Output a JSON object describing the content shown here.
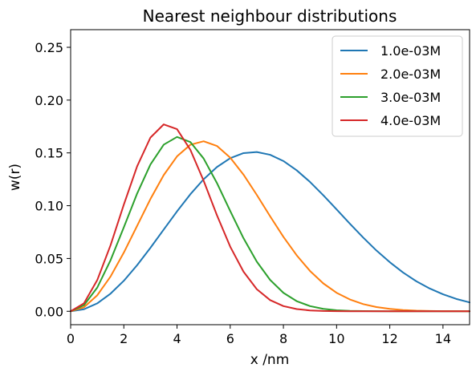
{
  "chart_data": {
    "type": "line",
    "title": "Nearest neighbour distributions",
    "xlabel": "x /nm",
    "ylabel": "w(r)",
    "xlim": [
      0,
      15
    ],
    "ylim": [
      -0.0127,
      0.2667
    ],
    "x_ticks": [
      0,
      2,
      4,
      6,
      8,
      10,
      12,
      14
    ],
    "y_ticks": [
      0.0,
      0.05,
      0.1,
      0.15,
      0.2,
      0.25
    ],
    "x_tick_labels": [
      "0",
      "2",
      "4",
      "6",
      "8",
      "10",
      "12",
      "14"
    ],
    "y_tick_labels": [
      "0.00",
      "0.05",
      "0.10",
      "0.15",
      "0.20",
      "0.25"
    ],
    "grid": false,
    "legend_position": "top-right",
    "x": [
      0,
      0.5,
      1,
      1.5,
      2,
      2.5,
      3,
      3.5,
      4,
      4.5,
      5,
      5.5,
      6,
      6.5,
      7,
      7.5,
      8,
      8.5,
      9,
      9.5,
      10,
      10.5,
      11,
      11.5,
      12,
      12.5,
      13,
      13.5,
      14,
      14.5,
      15
    ],
    "series": [
      {
        "name": "1.0e-03M",
        "color": "#1f77b4",
        "values": [
          0,
          0.0019,
          0.0075,
          0.0167,
          0.0289,
          0.0437,
          0.0601,
          0.0774,
          0.0946,
          0.1108,
          0.125,
          0.1366,
          0.145,
          0.1498,
          0.1508,
          0.1482,
          0.1423,
          0.1335,
          0.1225,
          0.1099,
          0.0965,
          0.0829,
          0.0698,
          0.0575,
          0.0465,
          0.0367,
          0.0284,
          0.0216,
          0.0161,
          0.0117,
          0.0084
        ]
      },
      {
        "name": "2.0e-03M",
        "color": "#ff7f0e",
        "values": [
          0,
          0.0038,
          0.0151,
          0.0329,
          0.0556,
          0.0809,
          0.1063,
          0.129,
          0.1467,
          0.1577,
          0.161,
          0.1566,
          0.1455,
          0.1294,
          0.1102,
          0.09,
          0.0705,
          0.053,
          0.0382,
          0.0264,
          0.0175,
          0.0112,
          0.0068,
          0.004,
          0.0023,
          0.0012,
          0.0006,
          0.0003,
          0.0001,
          0.0001,
          0
        ]
      },
      {
        "name": "3.0e-03M",
        "color": "#2ca02c",
        "values": [
          0,
          0.0057,
          0.0224,
          0.0483,
          0.0795,
          0.1115,
          0.139,
          0.1578,
          0.1651,
          0.1603,
          0.1447,
          0.1215,
          0.095,
          0.0692,
          0.047,
          0.0297,
          0.0175,
          0.0096,
          0.0049,
          0.0023,
          0.001,
          0.0004,
          0.0002,
          0.0001,
          0,
          0,
          0,
          0,
          0,
          0,
          0
        ]
      },
      {
        "name": "4.0e-03M",
        "color": "#d62728",
        "values": [
          0,
          0.0075,
          0.0295,
          0.0625,
          0.101,
          0.1373,
          0.1645,
          0.177,
          0.1725,
          0.153,
          0.1237,
          0.091,
          0.0612,
          0.0375,
          0.0209,
          0.0106,
          0.0049,
          0.0021,
          0.0008,
          0.0003,
          0.0001,
          0,
          0,
          0,
          0,
          0,
          0,
          0,
          0,
          0,
          0
        ]
      }
    ]
  }
}
